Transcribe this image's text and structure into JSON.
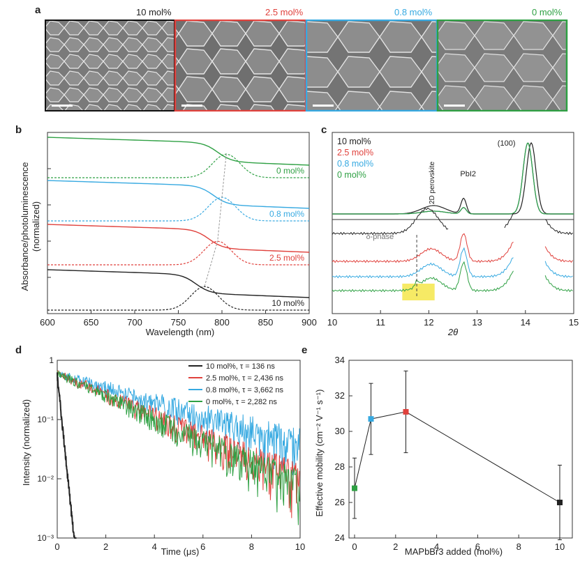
{
  "panels": {
    "a": {
      "letter": "a",
      "samples": [
        {
          "label": "10 mol%",
          "color": "#222222"
        },
        {
          "label": "2.5 mol%",
          "color": "#e0413c"
        },
        {
          "label": "0.8 mol%",
          "color": "#36a9e1"
        },
        {
          "label": "0 mol%",
          "color": "#2ea043"
        }
      ]
    },
    "b": {
      "letter": "b",
      "ylabel_line1": "Absorbance/photoluminescence",
      "ylabel_line2": "(normalized)",
      "xlabel": "Wavelength (nm)"
    },
    "c": {
      "letter": "c",
      "xlabel": "2θ",
      "annotations": {
        "peak100": "(100)",
        "pbi2": "PbI2",
        "perovskite2d": "2D perovskite",
        "delta": "δ-phase"
      }
    },
    "d": {
      "letter": "d",
      "ylabel": "Intensity (normalized)",
      "xlabel": "Time (μs)"
    },
    "e": {
      "letter": "e",
      "ylabel": "Effective mobility (cm⁻² V⁻¹ s⁻¹)",
      "xlabel": "MAPbBr3 added (mol%)"
    }
  },
  "chart_data": [
    {
      "id": "b",
      "type": "line",
      "xlabel": "Wavelength (nm)",
      "ylabel": "Absorbance/photoluminescence (normalized)",
      "xlim": [
        600,
        900
      ],
      "xticks": [
        600,
        650,
        700,
        750,
        800,
        850,
        900
      ],
      "series": [
        {
          "name": "0 mol%",
          "color": "#2ea043",
          "pl_peak_nm": 805
        },
        {
          "name": "0.8 mol%",
          "color": "#36a9e1",
          "pl_peak_nm": 800
        },
        {
          "name": "2.5 mol%",
          "color": "#e0413c",
          "pl_peak_nm": 795
        },
        {
          "name": "10 mol%",
          "color": "#222222",
          "pl_peak_nm": 780
        }
      ]
    },
    {
      "id": "c",
      "type": "line",
      "xlabel": "2θ",
      "xlim": [
        10,
        15
      ],
      "xticks": [
        10,
        11,
        12,
        13,
        14,
        15
      ],
      "legend": [
        "10 mol%",
        "2.5 mol%",
        "0.8 mol%",
        "0 mol%"
      ],
      "peaks": {
        "2D perovskite": 12.1,
        "PbI2": 12.7,
        "(100)": 14.1,
        "δ-phase": 11.75
      }
    },
    {
      "id": "d",
      "type": "line",
      "xlabel": "Time (μs)",
      "ylabel": "Intensity (normalized)",
      "xlim": [
        0,
        10
      ],
      "ylim": [
        0.001,
        1
      ],
      "yscale": "log",
      "xticks": [
        0,
        2,
        4,
        6,
        8,
        10
      ],
      "yticks": [
        "10⁻³",
        "10⁻²",
        "10⁻¹",
        "1"
      ],
      "series": [
        {
          "name": "10 mol%, τ = 136 ns",
          "color": "#222222",
          "tau_us": 0.136
        },
        {
          "name": "2.5 mol%, τ = 2,436 ns",
          "color": "#e0413c",
          "tau_us": 2.436
        },
        {
          "name": "0.8 mol%, τ = 3,662 ns",
          "color": "#36a9e1",
          "tau_us": 3.662
        },
        {
          "name": "0 mol%, τ = 2,282 ns",
          "color": "#2ea043",
          "tau_us": 2.282
        }
      ]
    },
    {
      "id": "e",
      "type": "scatter",
      "xlabel": "MAPbBr3 added (mol%)",
      "ylabel": "Effective mobility (cm⁻² V⁻¹ s⁻¹)",
      "xlim": [
        0,
        10
      ],
      "ylim": [
        24,
        34
      ],
      "xticks": [
        0,
        2,
        4,
        6,
        8,
        10
      ],
      "yticks": [
        24,
        26,
        28,
        30,
        32,
        34
      ],
      "points": [
        {
          "x": 0,
          "y": 26.8,
          "err": 1.7,
          "color": "#2ea043"
        },
        {
          "x": 0.8,
          "y": 30.7,
          "err": 2.0,
          "color": "#36a9e1"
        },
        {
          "x": 2.5,
          "y": 31.1,
          "err": 2.3,
          "color": "#e0413c"
        },
        {
          "x": 10,
          "y": 26.0,
          "err": 2.1,
          "color": "#222222"
        }
      ]
    }
  ]
}
